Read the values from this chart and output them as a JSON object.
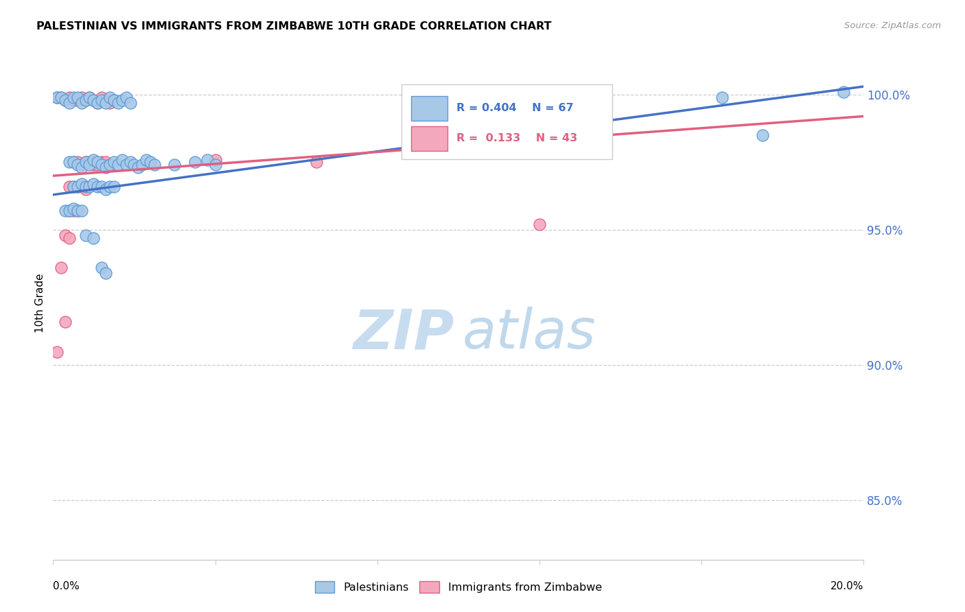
{
  "title": "PALESTINIAN VS IMMIGRANTS FROM ZIMBABWE 10TH GRADE CORRELATION CHART",
  "source_text": "Source: ZipAtlas.com",
  "ylabel": "10th Grade",
  "y_tick_labels": [
    "85.0%",
    "90.0%",
    "95.0%",
    "100.0%"
  ],
  "y_tick_values": [
    0.85,
    0.9,
    0.95,
    1.0
  ],
  "x_min": 0.0,
  "x_max": 0.2,
  "y_min": 0.828,
  "y_max": 1.018,
  "blue_color": "#A8C8E8",
  "pink_color": "#F4A8BE",
  "blue_edge_color": "#5B9BD5",
  "pink_edge_color": "#E06080",
  "blue_trendline_color": "#4472C4",
  "pink_trendline_color": "#E06080",
  "watermark_zip_color": "#C8DCF0",
  "watermark_atlas_color": "#C0D8EC",
  "blue_trendline": [
    [
      0.0,
      0.963
    ],
    [
      0.2,
      1.003
    ]
  ],
  "pink_trendline": [
    [
      0.0,
      0.97
    ],
    [
      0.2,
      0.992
    ]
  ],
  "blue_scatter": [
    [
      0.001,
      0.999
    ],
    [
      0.002,
      0.999
    ],
    [
      0.003,
      0.998
    ],
    [
      0.004,
      0.997
    ],
    [
      0.005,
      0.999
    ],
    [
      0.006,
      0.999
    ],
    [
      0.007,
      0.997
    ],
    [
      0.008,
      0.998
    ],
    [
      0.009,
      0.999
    ],
    [
      0.01,
      0.998
    ],
    [
      0.011,
      0.997
    ],
    [
      0.012,
      0.998
    ],
    [
      0.013,
      0.997
    ],
    [
      0.014,
      0.999
    ],
    [
      0.015,
      0.998
    ],
    [
      0.016,
      0.997
    ],
    [
      0.017,
      0.998
    ],
    [
      0.018,
      0.999
    ],
    [
      0.019,
      0.997
    ],
    [
      0.004,
      0.975
    ],
    [
      0.005,
      0.975
    ],
    [
      0.006,
      0.974
    ],
    [
      0.007,
      0.973
    ],
    [
      0.008,
      0.975
    ],
    [
      0.009,
      0.974
    ],
    [
      0.01,
      0.976
    ],
    [
      0.011,
      0.975
    ],
    [
      0.012,
      0.974
    ],
    [
      0.013,
      0.973
    ],
    [
      0.014,
      0.974
    ],
    [
      0.015,
      0.975
    ],
    [
      0.016,
      0.974
    ],
    [
      0.017,
      0.976
    ],
    [
      0.018,
      0.974
    ],
    [
      0.019,
      0.975
    ],
    [
      0.02,
      0.974
    ],
    [
      0.021,
      0.973
    ],
    [
      0.022,
      0.974
    ],
    [
      0.023,
      0.976
    ],
    [
      0.024,
      0.975
    ],
    [
      0.025,
      0.974
    ],
    [
      0.03,
      0.974
    ],
    [
      0.035,
      0.975
    ],
    [
      0.038,
      0.976
    ],
    [
      0.04,
      0.974
    ],
    [
      0.005,
      0.966
    ],
    [
      0.006,
      0.966
    ],
    [
      0.007,
      0.967
    ],
    [
      0.008,
      0.966
    ],
    [
      0.009,
      0.966
    ],
    [
      0.01,
      0.967
    ],
    [
      0.011,
      0.966
    ],
    [
      0.012,
      0.966
    ],
    [
      0.013,
      0.965
    ],
    [
      0.014,
      0.966
    ],
    [
      0.015,
      0.966
    ],
    [
      0.003,
      0.957
    ],
    [
      0.004,
      0.957
    ],
    [
      0.005,
      0.958
    ],
    [
      0.006,
      0.957
    ],
    [
      0.007,
      0.957
    ],
    [
      0.008,
      0.948
    ],
    [
      0.01,
      0.947
    ],
    [
      0.012,
      0.936
    ],
    [
      0.013,
      0.934
    ],
    [
      0.165,
      0.999
    ],
    [
      0.175,
      0.985
    ],
    [
      0.195,
      1.001
    ]
  ],
  "pink_scatter": [
    [
      0.001,
      0.999
    ],
    [
      0.002,
      0.999
    ],
    [
      0.003,
      0.998
    ],
    [
      0.004,
      0.999
    ],
    [
      0.005,
      0.998
    ],
    [
      0.006,
      0.998
    ],
    [
      0.007,
      0.999
    ],
    [
      0.008,
      0.998
    ],
    [
      0.009,
      0.999
    ],
    [
      0.01,
      0.998
    ],
    [
      0.011,
      0.997
    ],
    [
      0.012,
      0.999
    ],
    [
      0.013,
      0.998
    ],
    [
      0.014,
      0.997
    ],
    [
      0.015,
      0.998
    ],
    [
      0.005,
      0.975
    ],
    [
      0.006,
      0.975
    ],
    [
      0.007,
      0.974
    ],
    [
      0.008,
      0.975
    ],
    [
      0.009,
      0.975
    ],
    [
      0.01,
      0.974
    ],
    [
      0.011,
      0.974
    ],
    [
      0.012,
      0.975
    ],
    [
      0.013,
      0.975
    ],
    [
      0.014,
      0.974
    ],
    [
      0.004,
      0.966
    ],
    [
      0.005,
      0.966
    ],
    [
      0.006,
      0.966
    ],
    [
      0.007,
      0.966
    ],
    [
      0.008,
      0.965
    ],
    [
      0.004,
      0.957
    ],
    [
      0.005,
      0.957
    ],
    [
      0.006,
      0.957
    ],
    [
      0.003,
      0.948
    ],
    [
      0.004,
      0.947
    ],
    [
      0.002,
      0.936
    ],
    [
      0.003,
      0.916
    ],
    [
      0.001,
      0.905
    ],
    [
      0.12,
      0.952
    ],
    [
      0.04,
      0.976
    ],
    [
      0.065,
      0.975
    ],
    [
      0.13,
      0.99
    ]
  ]
}
